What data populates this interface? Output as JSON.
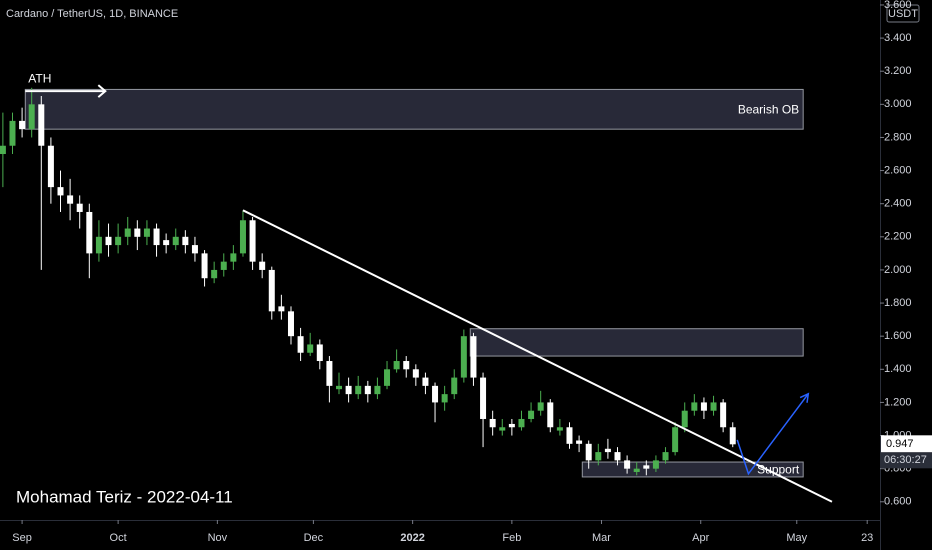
{
  "chart_data": {
    "type": "candlestick",
    "title": "Cardano / TetherUS, 1D, BINANCE",
    "currency": "USDT",
    "author_note": "Mohamad Teriz - 2022-04-11",
    "countdown": "06:30:27",
    "last_price": 0.947,
    "up_color": "#4caf50",
    "down_color": "#ffffff",
    "ylim": [
      0.49,
      3.63
    ],
    "yticks": [
      {
        "value": 0.6,
        "label": "0.600"
      },
      {
        "value": 0.8,
        "label": "0.800"
      },
      {
        "value": 1.0,
        "label": "1.000"
      },
      {
        "value": 1.2,
        "label": "1.200"
      },
      {
        "value": 1.4,
        "label": "1.400"
      },
      {
        "value": 1.6,
        "label": "1.600"
      },
      {
        "value": 1.8,
        "label": "1.800"
      },
      {
        "value": 2.0,
        "label": "2.000"
      },
      {
        "value": 2.2,
        "label": "2.200"
      },
      {
        "value": 2.4,
        "label": "2.400"
      },
      {
        "value": 2.6,
        "label": "2.600"
      },
      {
        "value": 2.8,
        "label": "2.800"
      },
      {
        "value": 3.0,
        "label": "3.000"
      },
      {
        "value": 3.2,
        "label": "3.200"
      },
      {
        "value": 3.4,
        "label": "3.400"
      },
      {
        "value": 3.6,
        "label": "3.600"
      }
    ],
    "xlim": [
      -6.9,
      268
    ],
    "xticks": [
      {
        "value": 0,
        "label": "Sep"
      },
      {
        "value": 30,
        "label": "Oct"
      },
      {
        "value": 61,
        "label": "Nov"
      },
      {
        "value": 91,
        "label": "Dec"
      },
      {
        "value": 122,
        "label": "2022"
      },
      {
        "value": 153,
        "label": "Feb"
      },
      {
        "value": 181,
        "label": "Mar"
      },
      {
        "value": 212,
        "label": "Apr"
      },
      {
        "value": 242,
        "label": "May"
      },
      {
        "value": 264,
        "label": "23"
      }
    ],
    "x": [
      -6,
      -3,
      0,
      3,
      6,
      9,
      12,
      15,
      18,
      21,
      24,
      27,
      30,
      33,
      36,
      39,
      42,
      45,
      48,
      51,
      54,
      57,
      60,
      63,
      66,
      69,
      72,
      75,
      78,
      81,
      84,
      87,
      90,
      93,
      96,
      99,
      102,
      105,
      108,
      111,
      114,
      117,
      120,
      123,
      126,
      129,
      132,
      135,
      138,
      141,
      144,
      147,
      150,
      153,
      156,
      159,
      162,
      165,
      168,
      171,
      174,
      177,
      180,
      183,
      186,
      189,
      192,
      195,
      198,
      201,
      204,
      207,
      210,
      213,
      216,
      219,
      222
    ],
    "ohlc": [
      [
        2.7,
        2.95,
        2.5,
        2.75
      ],
      [
        2.75,
        2.95,
        2.7,
        2.9
      ],
      [
        2.9,
        2.98,
        2.8,
        2.85
      ],
      [
        2.85,
        3.1,
        2.8,
        3.0
      ],
      [
        3.0,
        3.05,
        2.0,
        2.75
      ],
      [
        2.75,
        2.8,
        2.4,
        2.5
      ],
      [
        2.5,
        2.6,
        2.35,
        2.45
      ],
      [
        2.45,
        2.55,
        2.3,
        2.4
      ],
      [
        2.4,
        2.45,
        2.25,
        2.35
      ],
      [
        2.35,
        2.4,
        1.95,
        2.1
      ],
      [
        2.1,
        2.3,
        2.05,
        2.2
      ],
      [
        2.2,
        2.28,
        2.08,
        2.15
      ],
      [
        2.15,
        2.28,
        2.1,
        2.2
      ],
      [
        2.2,
        2.32,
        2.15,
        2.25
      ],
      [
        2.25,
        2.3,
        2.12,
        2.2
      ],
      [
        2.2,
        2.3,
        2.15,
        2.25
      ],
      [
        2.25,
        2.28,
        2.08,
        2.15
      ],
      [
        2.18,
        2.22,
        2.1,
        2.15
      ],
      [
        2.15,
        2.25,
        2.12,
        2.2
      ],
      [
        2.2,
        2.24,
        2.1,
        2.15
      ],
      [
        2.15,
        2.2,
        2.05,
        2.1
      ],
      [
        2.1,
        2.12,
        1.9,
        1.95
      ],
      [
        1.95,
        2.05,
        1.92,
        2.0
      ],
      [
        2.0,
        2.1,
        1.96,
        2.05
      ],
      [
        2.05,
        2.15,
        2.0,
        2.1
      ],
      [
        2.1,
        2.36,
        2.08,
        2.3
      ],
      [
        2.3,
        2.32,
        2.0,
        2.05
      ],
      [
        2.05,
        2.1,
        1.95,
        2.0
      ],
      [
        2.0,
        2.02,
        1.7,
        1.75
      ],
      [
        1.78,
        1.85,
        1.7,
        1.75
      ],
      [
        1.75,
        1.78,
        1.55,
        1.6
      ],
      [
        1.6,
        1.65,
        1.45,
        1.5
      ],
      [
        1.5,
        1.62,
        1.48,
        1.55
      ],
      [
        1.55,
        1.58,
        1.4,
        1.45
      ],
      [
        1.45,
        1.48,
        1.2,
        1.3
      ],
      [
        1.28,
        1.38,
        1.25,
        1.3
      ],
      [
        1.3,
        1.35,
        1.2,
        1.25
      ],
      [
        1.25,
        1.36,
        1.22,
        1.3
      ],
      [
        1.3,
        1.33,
        1.2,
        1.25
      ],
      [
        1.25,
        1.35,
        1.22,
        1.3
      ],
      [
        1.3,
        1.45,
        1.28,
        1.4
      ],
      [
        1.4,
        1.52,
        1.38,
        1.45
      ],
      [
        1.45,
        1.48,
        1.35,
        1.4
      ],
      [
        1.4,
        1.43,
        1.3,
        1.35
      ],
      [
        1.35,
        1.38,
        1.25,
        1.3
      ],
      [
        1.3,
        1.32,
        1.08,
        1.2
      ],
      [
        1.2,
        1.3,
        1.15,
        1.25
      ],
      [
        1.25,
        1.4,
        1.22,
        1.35
      ],
      [
        1.35,
        1.64,
        1.32,
        1.6
      ],
      [
        1.6,
        1.62,
        1.3,
        1.35
      ],
      [
        1.35,
        1.38,
        0.93,
        1.1
      ],
      [
        1.1,
        1.15,
        1.0,
        1.05
      ],
      [
        1.03,
        1.1,
        1.0,
        1.05
      ],
      [
        1.07,
        1.1,
        1.0,
        1.05
      ],
      [
        1.05,
        1.15,
        1.03,
        1.1
      ],
      [
        1.1,
        1.2,
        1.08,
        1.15
      ],
      [
        1.15,
        1.27,
        1.12,
        1.2
      ],
      [
        1.2,
        1.22,
        1.02,
        1.05
      ],
      [
        1.03,
        1.1,
        1.0,
        1.05
      ],
      [
        1.05,
        1.08,
        0.92,
        0.95
      ],
      [
        0.97,
        1.0,
        0.9,
        0.95
      ],
      [
        0.95,
        0.97,
        0.8,
        0.85
      ],
      [
        0.85,
        0.95,
        0.82,
        0.9
      ],
      [
        0.92,
        0.98,
        0.86,
        0.9
      ],
      [
        0.9,
        0.93,
        0.82,
        0.85
      ],
      [
        0.85,
        0.88,
        0.77,
        0.8
      ],
      [
        0.78,
        0.84,
        0.76,
        0.8
      ],
      [
        0.82,
        0.85,
        0.76,
        0.8
      ],
      [
        0.8,
        0.88,
        0.78,
        0.85
      ],
      [
        0.85,
        0.93,
        0.83,
        0.9
      ],
      [
        0.9,
        1.08,
        0.88,
        1.05
      ],
      [
        1.05,
        1.2,
        1.02,
        1.15
      ],
      [
        1.15,
        1.25,
        1.12,
        1.2
      ],
      [
        1.2,
        1.23,
        1.1,
        1.15
      ],
      [
        1.15,
        1.24,
        1.12,
        1.2
      ],
      [
        1.2,
        1.22,
        1.02,
        1.05
      ],
      [
        1.05,
        1.08,
        0.93,
        0.947
      ]
    ],
    "zones": [
      {
        "label": "Bearish OB",
        "x": [
          1,
          244
        ],
        "y": [
          2.85,
          3.09
        ]
      },
      {
        "x": [
          140,
          244
        ],
        "y": [
          1.48,
          1.645
        ]
      },
      {
        "label": "Support",
        "x": [
          175,
          244
        ],
        "y": [
          0.75,
          0.84
        ]
      }
    ],
    "ath_marker": {
      "label": "ATH",
      "x": [
        1,
        26
      ],
      "y": 3.08
    },
    "trendline": {
      "x": [
        69,
        253
      ],
      "y": [
        2.36,
        0.6
      ]
    },
    "projection": {
      "x": [
        223.4,
        226.9,
        245.6
      ],
      "y": [
        0.974,
        0.769,
        1.252
      ]
    }
  }
}
